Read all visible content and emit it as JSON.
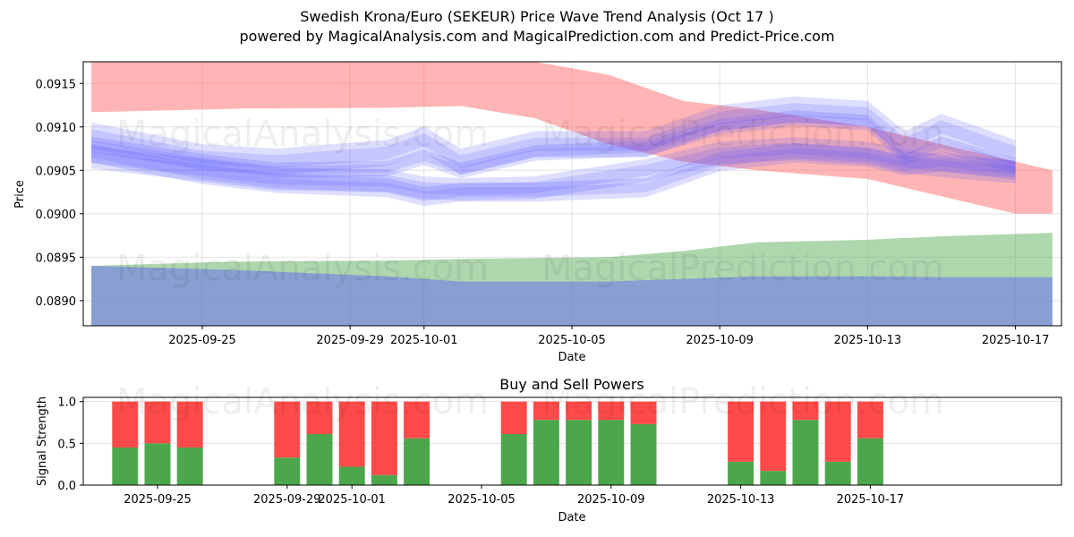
{
  "header": {
    "title": "Swedish Krona/Euro (SEKEUR) Price Wave Trend Analysis (Oct 17 )",
    "subtitle": "powered by MagicalAnalysis.com and MagicalPrediction.com and Predict-Price.com"
  },
  "watermarks": [
    "MagicalAnalysis.com",
    "MagicalPrediction.com"
  ],
  "colors": {
    "red_band": "#ff5a5a",
    "blue_band": "#5a5aff",
    "green_band": "#4ca64c",
    "overlap_band": "#7aa0b0",
    "buy": "#4ca64c",
    "sell": "#ff4a4a"
  },
  "chart_data": [
    {
      "type": "area",
      "title": "",
      "xlabel": "Date",
      "ylabel": "Price",
      "ylim": [
        0.08871,
        0.09175
      ],
      "xlim": [
        "2025-09-21T16:00",
        "2025-10-18T12:00"
      ],
      "yticks": [
        "0.0890",
        "0.0895",
        "0.0900",
        "0.0905",
        "0.0910",
        "0.0915"
      ],
      "ytick_values": [
        0.089,
        0.0895,
        0.09,
        0.0905,
        0.091,
        0.0915
      ],
      "xticks": [
        "2025-09-25",
        "2025-09-29",
        "2025-10-01",
        "2025-10-05",
        "2025-10-09",
        "2025-10-13",
        "2025-10-17"
      ],
      "grid": true,
      "series": [
        {
          "name": "red-band",
          "color": "#ff5a5a",
          "x": [
            "2025-09-22",
            "2025-09-26",
            "2025-09-30",
            "2025-10-02",
            "2025-10-04",
            "2025-10-06",
            "2025-10-08",
            "2025-10-10",
            "2025-10-13",
            "2025-10-15",
            "2025-10-17",
            "2025-10-18"
          ],
          "upper": [
            0.09175,
            0.09175,
            0.09175,
            0.09175,
            0.09175,
            0.0916,
            0.0913,
            0.0912,
            0.091,
            0.0908,
            0.0906,
            0.0905
          ],
          "lower": [
            0.09117,
            0.09121,
            0.09122,
            0.09124,
            0.0911,
            0.0908,
            0.0906,
            0.0905,
            0.0904,
            0.0902,
            0.09,
            0.09
          ]
        },
        {
          "name": "green-band",
          "color": "#4ca64c",
          "x": [
            "2025-09-22",
            "2025-09-26",
            "2025-09-30",
            "2025-10-02",
            "2025-10-06",
            "2025-10-08",
            "2025-10-10",
            "2025-10-13",
            "2025-10-15",
            "2025-10-18"
          ],
          "upper": [
            0.0894,
            0.08945,
            0.08946,
            0.08948,
            0.0895,
            0.08957,
            0.08967,
            0.0897,
            0.08974,
            0.08978
          ],
          "lower": [
            0.0871,
            0.0871,
            0.0871,
            0.0871,
            0.0871,
            0.0871,
            0.0871,
            0.0871,
            0.0871,
            0.0871
          ]
        },
        {
          "name": "blue-base-band",
          "color": "#5a5aff",
          "x": [
            "2025-09-22",
            "2025-09-26",
            "2025-09-30",
            "2025-10-02",
            "2025-10-06",
            "2025-10-08",
            "2025-10-10",
            "2025-10-13",
            "2025-10-15",
            "2025-10-18"
          ],
          "upper": [
            0.0894,
            0.08935,
            0.08928,
            0.08922,
            0.08922,
            0.08925,
            0.08928,
            0.08928,
            0.08927,
            0.08927
          ],
          "lower": [
            0.0871,
            0.0871,
            0.0871,
            0.0871,
            0.08721,
            0.08735,
            0.0876,
            0.0879,
            0.088,
            0.0881
          ]
        },
        {
          "name": "blue-wave-1",
          "color": "#5a5aff",
          "x": [
            "2025-09-22",
            "2025-09-25",
            "2025-09-27",
            "2025-09-30",
            "2025-10-01",
            "2025-10-02",
            "2025-10-04",
            "2025-10-07",
            "2025-10-09",
            "2025-10-11",
            "2025-10-13",
            "2025-10-14",
            "2025-10-15",
            "2025-10-17"
          ],
          "center": [
            0.0908,
            0.0906,
            0.0905,
            0.09052,
            0.09065,
            0.0905,
            0.0907,
            0.09075,
            0.091,
            0.0911,
            0.09105,
            0.09065,
            0.0908,
            0.09055
          ],
          "width": 0.00018
        },
        {
          "name": "blue-wave-2",
          "color": "#5a5aff",
          "x": [
            "2025-09-22",
            "2025-09-25",
            "2025-09-27",
            "2025-09-30",
            "2025-10-01",
            "2025-10-02",
            "2025-10-04",
            "2025-10-07",
            "2025-10-09",
            "2025-10-11",
            "2025-10-13",
            "2025-10-14",
            "2025-10-15",
            "2025-10-17"
          ],
          "center": [
            0.0907,
            0.09045,
            0.09035,
            0.0903,
            0.0902,
            0.09025,
            0.09025,
            0.0903,
            0.0906,
            0.0907,
            0.09065,
            0.09055,
            0.0906,
            0.0905
          ],
          "width": 0.00022
        },
        {
          "name": "blue-wave-3",
          "color": "#5a5aff",
          "x": [
            "2025-09-22",
            "2025-09-25",
            "2025-09-27",
            "2025-09-30",
            "2025-10-01",
            "2025-10-02",
            "2025-10-04",
            "2025-10-07",
            "2025-10-09",
            "2025-10-11",
            "2025-10-13",
            "2025-10-14",
            "2025-10-15",
            "2025-10-17"
          ],
          "center": [
            0.0909,
            0.09065,
            0.0906,
            0.0907,
            0.09085,
            0.0906,
            0.0908,
            0.0908,
            0.0911,
            0.0912,
            0.09115,
            0.0908,
            0.091,
            0.0907
          ],
          "width": 0.0003
        },
        {
          "name": "blue-wave-4",
          "color": "#5a5aff",
          "x": [
            "2025-09-22",
            "2025-09-25",
            "2025-09-27",
            "2025-09-30",
            "2025-10-01",
            "2025-10-02",
            "2025-10-04",
            "2025-10-07",
            "2025-10-09",
            "2025-10-11",
            "2025-10-13",
            "2025-10-14",
            "2025-10-15",
            "2025-10-17"
          ],
          "center": [
            0.09065,
            0.0905,
            0.0904,
            0.09038,
            0.0903,
            0.09028,
            0.0903,
            0.0905,
            0.0907,
            0.09075,
            0.0907,
            0.0906,
            0.09055,
            0.09048
          ],
          "width": 0.00026
        }
      ]
    },
    {
      "type": "bar",
      "title": "Buy and Sell Powers",
      "xlabel": "Date",
      "ylabel": "Signal Strength",
      "ylim": [
        0,
        1.05
      ],
      "yticks": [
        "0.0",
        "0.5",
        "1.0"
      ],
      "ytick_values": [
        0.0,
        0.5,
        1.0
      ],
      "xticks": [
        "2025-09-25",
        "2025-09-29",
        "2025-10-01",
        "2025-10-05",
        "2025-10-09",
        "2025-10-13",
        "2025-10-17"
      ],
      "grid": true,
      "categories": [
        "2025-09-24",
        "2025-09-25",
        "2025-09-26",
        "2025-09-29",
        "2025-09-30",
        "2025-10-01",
        "2025-10-02",
        "2025-10-03",
        "2025-10-06",
        "2025-10-07",
        "2025-10-08",
        "2025-10-09",
        "2025-10-10",
        "2025-10-13",
        "2025-10-14",
        "2025-10-15",
        "2025-10-16",
        "2025-10-17"
      ],
      "series": [
        {
          "name": "Buy",
          "color": "#4ca64c",
          "values": [
            0.45,
            0.5,
            0.45,
            0.33,
            0.61,
            0.22,
            0.12,
            0.56,
            0.61,
            0.78,
            0.78,
            0.78,
            0.73,
            0.28,
            0.17,
            0.78,
            0.28,
            0.56
          ]
        },
        {
          "name": "Sell",
          "color": "#ff4a4a",
          "values": [
            0.55,
            0.5,
            0.55,
            0.67,
            0.39,
            0.78,
            0.88,
            0.44,
            0.39,
            0.22,
            0.22,
            0.22,
            0.27,
            0.72,
            0.83,
            0.22,
            0.72,
            0.44
          ]
        }
      ]
    }
  ]
}
